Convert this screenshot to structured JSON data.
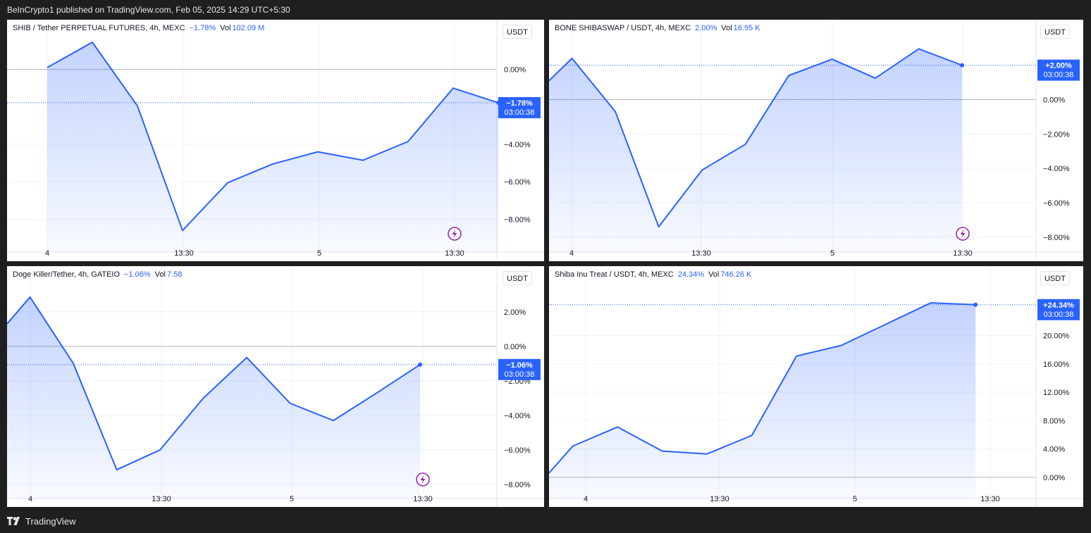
{
  "header": {
    "publisher_text": "BeInCrypto1 published on TradingView.com, Feb 05, 2025 14:29 UTC+5:30"
  },
  "footer": {
    "brand": "TradingView"
  },
  "colors": {
    "line": "#2962ff",
    "label_bg": "#2962ff",
    "grid": "#f0f3fa",
    "zero_line": "#b2b5be",
    "lightning": "#9c27b0"
  },
  "chart_data": [
    {
      "type": "area",
      "title": "SHIB / Tether PERPETUAL FUTURES, 4h, MEXC",
      "change": "−1.78%",
      "vol_label": "Vol",
      "vol_value": "102.09 M",
      "unit": "USDT",
      "last_label": "−1.78%",
      "countdown": "03:00:38",
      "x_ticks": [
        "4",
        "13:30",
        "5",
        "13:30"
      ],
      "y_ticks": [
        0,
        -4,
        -6,
        -8
      ],
      "y_tick_labels": [
        "0.00%",
        "−4.00%",
        "−6.00%",
        "−8.00%"
      ],
      "ylim": [
        -9.0,
        1.6
      ],
      "x": [
        0,
        1,
        2,
        3,
        4,
        5,
        6,
        7,
        8,
        9,
        10
      ],
      "values": [
        0.1,
        1.45,
        -1.95,
        -8.6,
        -6.05,
        -5.05,
        -4.4,
        -4.85,
        -3.85,
        -1.0,
        -1.78
      ],
      "last": -1.78
    },
    {
      "type": "area",
      "title": "BONE SHIBASWAP / USDT, 4h, MEXC",
      "change": "2.00%",
      "vol_label": "Vol",
      "vol_value": "16.95 K",
      "unit": "USDT",
      "last_label": "+2.00%",
      "countdown": "03:00:38",
      "x_ticks": [
        "4",
        "13:30",
        "5",
        "13:30"
      ],
      "y_ticks": [
        0,
        -2,
        -4,
        -6,
        -8
      ],
      "y_tick_labels": [
        "0.00%",
        "−2.00%",
        "−4.00%",
        "−6.00%",
        "−8.00%"
      ],
      "ylim": [
        -8.05,
        3.5
      ],
      "x": [
        0,
        0.53,
        1.53,
        2.53,
        3.53,
        4.53,
        5.53,
        6.53,
        7.53,
        8.53,
        9.53
      ],
      "values": [
        1.1,
        2.4,
        -0.7,
        -7.4,
        -4.1,
        -2.6,
        1.4,
        2.35,
        1.25,
        2.95,
        2.0
      ],
      "last": 2.0
    },
    {
      "type": "area",
      "title": "Doge Killer/Tether, 4h, GATEIO",
      "change": "−1.06%",
      "vol_label": "Vol",
      "vol_value": "7.58",
      "unit": "USDT",
      "last_label": "−1.06%",
      "countdown": "03:00:38",
      "x_ticks": [
        "4",
        "13:30",
        "5",
        "13:30"
      ],
      "y_ticks": [
        2,
        0,
        -2,
        -4,
        -6,
        -8
      ],
      "y_tick_labels": [
        "2.00%",
        "0.00%",
        "−2.00%",
        "−4.00%",
        "−6.00%",
        "−8.00%"
      ],
      "ylim": [
        -8.0,
        3.5
      ],
      "x": [
        0,
        0.53,
        1.53,
        2.53,
        3.53,
        4.53,
        5.53,
        6.53,
        7.53,
        8.53,
        9.53
      ],
      "values": [
        1.3,
        2.85,
        -1.0,
        -7.15,
        -6.0,
        -3.0,
        -0.65,
        -3.3,
        -4.3,
        -2.7,
        -1.06
      ],
      "last": -1.06
    },
    {
      "type": "area",
      "title": "Shiba Inu Treat / USDT, 4h, MEXC",
      "change": "24.34%",
      "vol_label": "Vol",
      "vol_value": "746.26 K",
      "unit": "USDT",
      "last_label": "+24.34%",
      "countdown": "03:00:38",
      "x_ticks": [
        "4",
        "13:30",
        "5",
        "13:30"
      ],
      "y_ticks": [
        20,
        16,
        12,
        8,
        4,
        0
      ],
      "y_tick_labels": [
        "20.00%",
        "16.00%",
        "12.00%",
        "8.00%",
        "4.00%",
        "0.00%"
      ],
      "ylim": [
        -1.0,
        27.0
      ],
      "x": [
        0,
        0.53,
        1.53,
        2.53,
        3.53,
        4.53,
        5.53,
        6.53,
        7.53,
        8.53,
        9.53
      ],
      "values": [
        0.6,
        4.4,
        7.1,
        3.7,
        3.3,
        5.9,
        17.1,
        18.6,
        21.6,
        24.6,
        24.34
      ],
      "last": 24.34
    }
  ]
}
